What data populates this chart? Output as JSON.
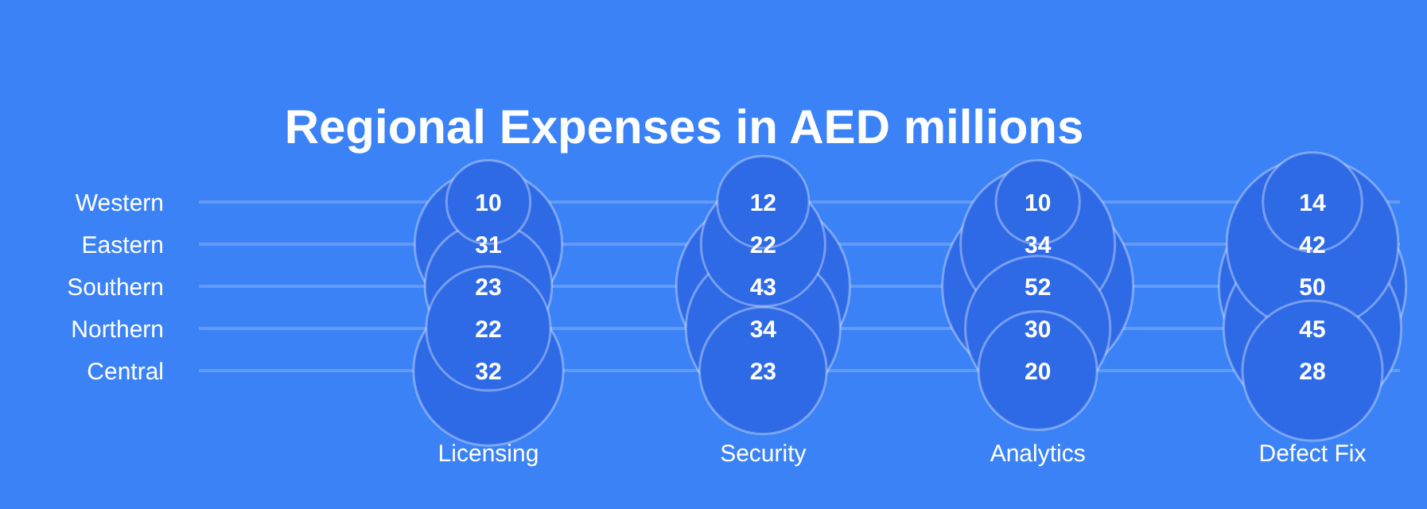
{
  "chart_data": {
    "type": "other",
    "title": "Regional Expenses in AED millions",
    "categories": [
      "Licensing",
      "Security",
      "Analytics",
      "Defect Fix"
    ],
    "y_categories": [
      "Western",
      "Eastern",
      "Southern",
      "Northern",
      "Central"
    ],
    "data_labels": true,
    "series": [
      {
        "color": "#2f6ae6",
        "values": [
          10,
          12,
          10,
          14
        ]
      },
      {
        "color": "#2f6ae6",
        "values": [
          31,
          22,
          34,
          42
        ]
      },
      {
        "color": "#2f6ae6",
        "values": [
          23,
          43,
          52,
          50
        ]
      },
      {
        "color": "#2f6ae6",
        "values": [
          22,
          34,
          30,
          45
        ]
      },
      {
        "color": "#2f6ae6",
        "values": [
          32,
          23,
          20,
          28
        ]
      }
    ]
  }
}
